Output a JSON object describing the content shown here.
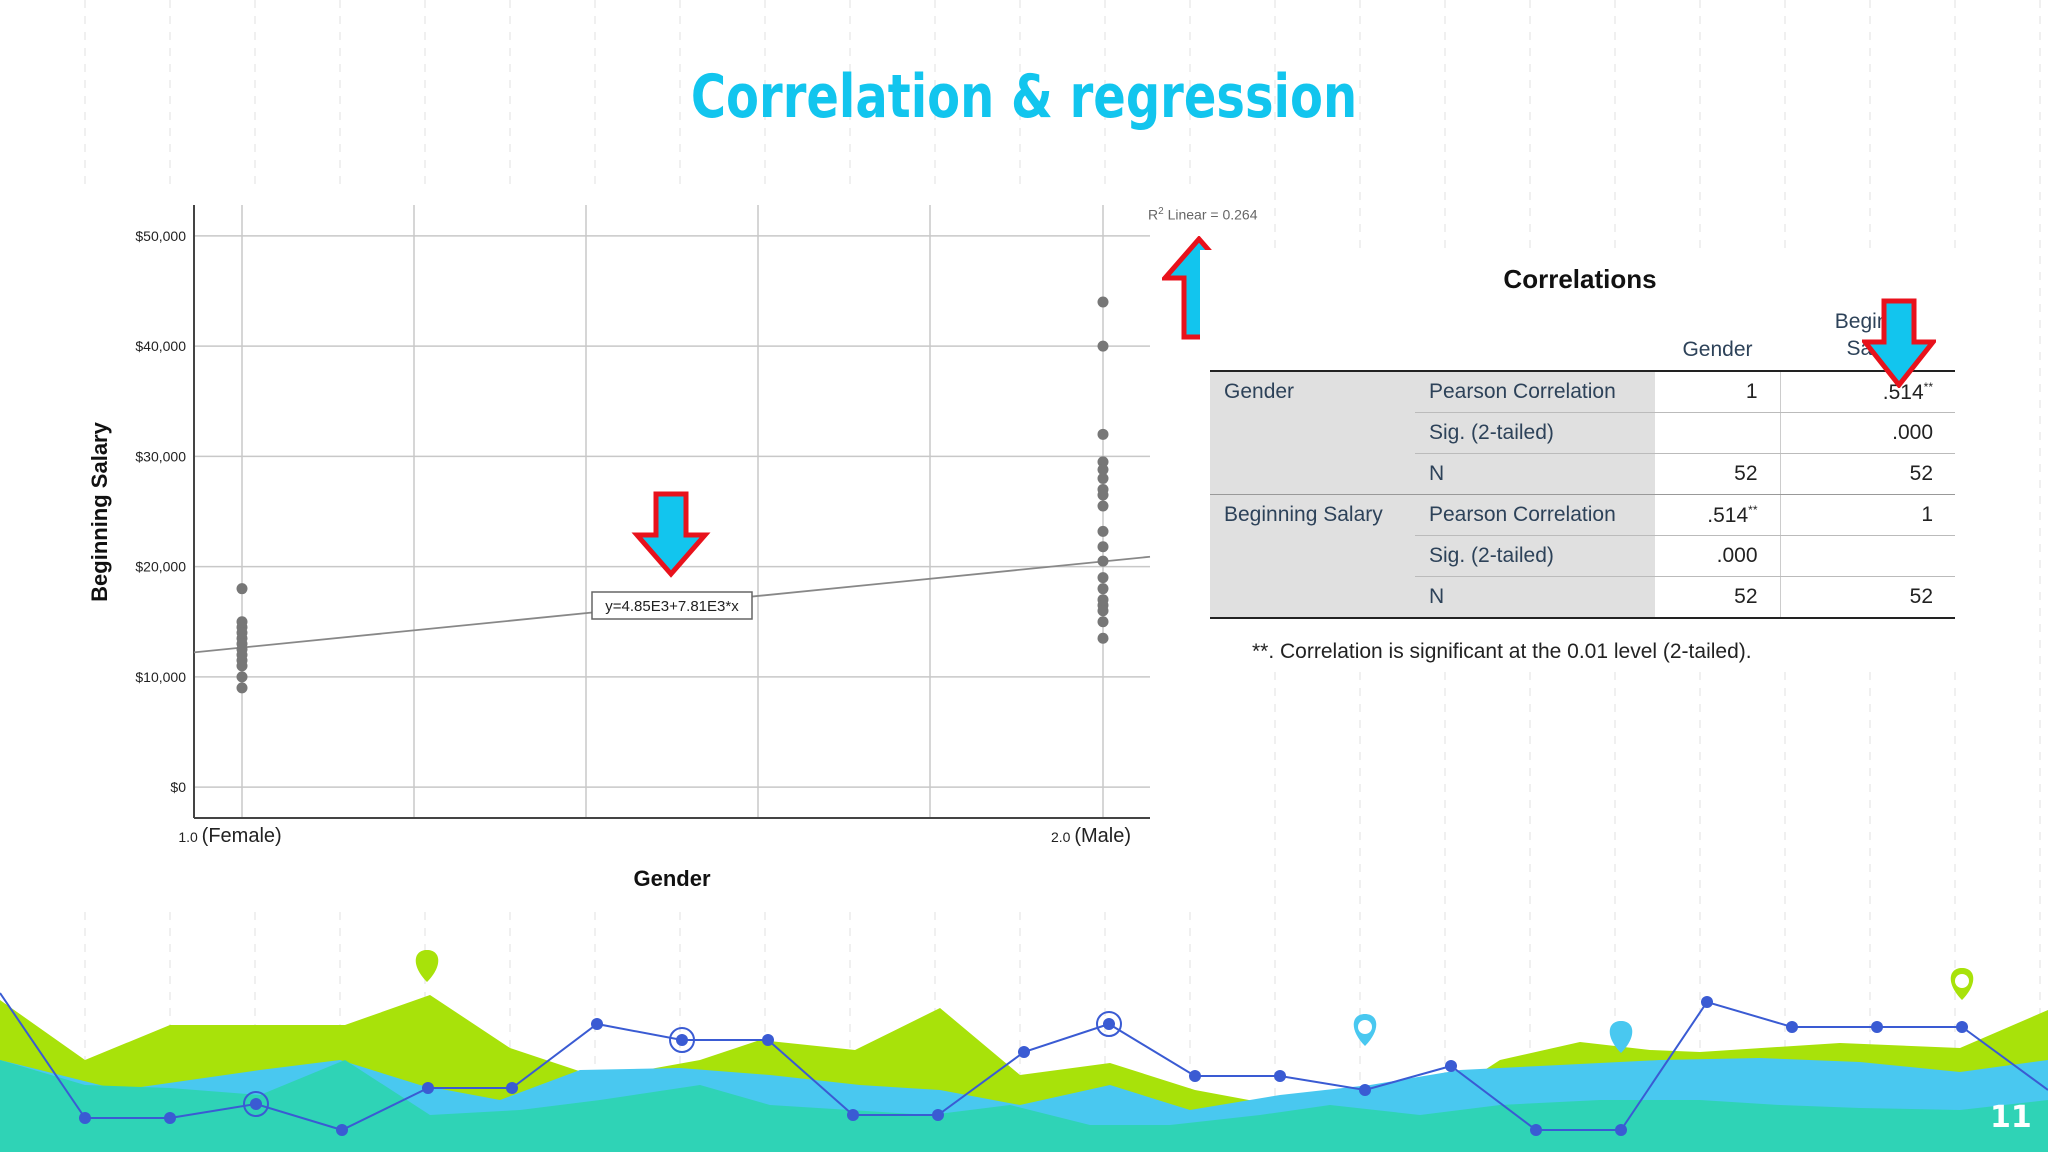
{
  "slide": {
    "title": "Correlation & regression",
    "page_number": "11"
  },
  "colors": {
    "title": "#12c5ee",
    "arrow_fill": "#12c5ee",
    "arrow_outline": "#e8121c",
    "point": "#777777",
    "green": "#a8e20a",
    "teal": "#2fd3b6",
    "blue": "#49c8f0",
    "line": "#3a5bd3"
  },
  "chart_data": {
    "type": "scatter",
    "title": "",
    "xlabel": "Gender",
    "ylabel": "Beginning Salary",
    "x_tick_labels": [
      {
        "value": 1.0,
        "num": "1.0",
        "text": "(Female)"
      },
      {
        "value": 2.0,
        "num": "2.0",
        "text": "(Male)"
      }
    ],
    "y_ticks": [
      0,
      10000,
      20000,
      30000,
      40000,
      50000
    ],
    "y_tick_labels": [
      "$0",
      "$10,000",
      "$20,000",
      "$30,000",
      "$40,000",
      "$50,000"
    ],
    "xlim": [
      0.95,
      2.06
    ],
    "ylim": [
      -2800,
      52800
    ],
    "grid": true,
    "series": [
      {
        "points": [
          [
            1,
            18000
          ],
          [
            1,
            15000
          ],
          [
            1,
            14500
          ],
          [
            1,
            14000
          ],
          [
            1,
            13500
          ],
          [
            1,
            13000
          ],
          [
            1,
            12500
          ],
          [
            1,
            12000
          ],
          [
            1,
            11500
          ],
          [
            1,
            11000
          ],
          [
            1,
            10000
          ],
          [
            1,
            9000
          ],
          [
            2,
            44000
          ],
          [
            2,
            40000
          ],
          [
            2,
            32000
          ],
          [
            2,
            29500
          ],
          [
            2,
            28800
          ],
          [
            2,
            28000
          ],
          [
            2,
            27000
          ],
          [
            2,
            26500
          ],
          [
            2,
            25500
          ],
          [
            2,
            23200
          ],
          [
            2,
            21800
          ],
          [
            2,
            20500
          ],
          [
            2,
            19000
          ],
          [
            2,
            18000
          ],
          [
            2,
            17000
          ],
          [
            2,
            16500
          ],
          [
            2,
            16000
          ],
          [
            2,
            15000
          ],
          [
            2,
            13500
          ]
        ]
      }
    ],
    "fit_line": {
      "intercept": 4850,
      "slope": 7810,
      "label": "y=4.85E3+7.81E3*x"
    },
    "r2_label": {
      "prefix": "R",
      "sup": "2",
      "text": " Linear = 0.264"
    }
  },
  "correlations_table": {
    "title": "Correlations",
    "columns": [
      "Gender",
      "Beginn",
      "Sala"
    ],
    "rows": [
      {
        "group": "Gender",
        "stat": "Pearson Correlation",
        "v1": "1",
        "v2": ".514",
        "v2_sup": "**"
      },
      {
        "group": "",
        "stat": "Sig. (2-tailed)",
        "v1": "",
        "v2": ".000"
      },
      {
        "group": "",
        "stat": "N",
        "v1": "52",
        "v2": "52"
      },
      {
        "group": "Beginning Salary",
        "stat": "Pearson Correlation",
        "v1": ".514",
        "v1_sup": "**",
        "v2": "1"
      },
      {
        "group": "",
        "stat": "Sig. (2-tailed)",
        "v1": ".000",
        "v2": ""
      },
      {
        "group": "",
        "stat": "N",
        "v1": "52",
        "v2": "52"
      }
    ],
    "footnote": "**. Correlation is significant at the 0.01 level (2-tailed)."
  }
}
